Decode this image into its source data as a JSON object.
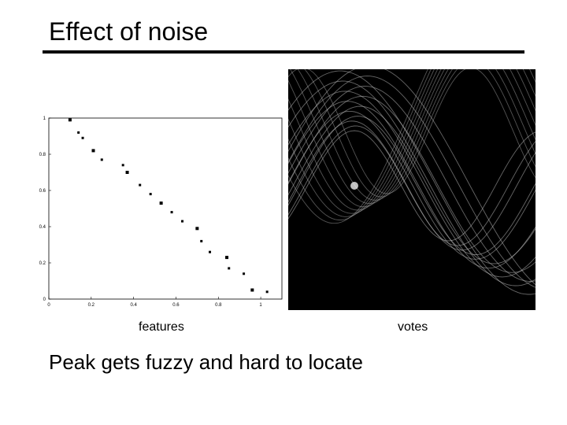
{
  "slide": {
    "title": "Effect of noise",
    "features_caption": "features",
    "votes_caption": "votes",
    "bullet": "Peak gets fuzzy and hard to locate"
  },
  "colors": {
    "background": "#ffffff",
    "text": "#000000",
    "votes_background": "#000000",
    "votes_curves": "#bbbbbb"
  },
  "chart_data": [
    {
      "type": "scatter",
      "title": "",
      "xlabel": "",
      "ylabel": "",
      "xlim": [
        0,
        1.1
      ],
      "ylim": [
        0,
        1.0
      ],
      "x_ticks": [
        "0",
        "0.2",
        "0.4",
        "0.6",
        "0.8",
        "1"
      ],
      "y_ticks": [
        "0",
        "0.2",
        "0.4",
        "0.6",
        "0.8",
        "1"
      ],
      "grid": false,
      "points": [
        {
          "x": 0.1,
          "y": 0.99
        },
        {
          "x": 0.14,
          "y": 0.92
        },
        {
          "x": 0.16,
          "y": 0.89
        },
        {
          "x": 0.21,
          "y": 0.82
        },
        {
          "x": 0.25,
          "y": 0.77
        },
        {
          "x": 0.35,
          "y": 0.74
        },
        {
          "x": 0.37,
          "y": 0.7
        },
        {
          "x": 0.43,
          "y": 0.63
        },
        {
          "x": 0.48,
          "y": 0.58
        },
        {
          "x": 0.53,
          "y": 0.53
        },
        {
          "x": 0.58,
          "y": 0.48
        },
        {
          "x": 0.63,
          "y": 0.43
        },
        {
          "x": 0.7,
          "y": 0.39
        },
        {
          "x": 0.72,
          "y": 0.32
        },
        {
          "x": 0.76,
          "y": 0.26
        },
        {
          "x": 0.84,
          "y": 0.23
        },
        {
          "x": 0.85,
          "y": 0.17
        },
        {
          "x": 0.92,
          "y": 0.14
        },
        {
          "x": 0.96,
          "y": 0.05
        },
        {
          "x": 1.03,
          "y": 0.04
        }
      ]
    }
  ]
}
